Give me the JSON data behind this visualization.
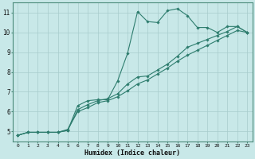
{
  "xlabel": "Humidex (Indice chaleur)",
  "bg_color": "#c8e8e8",
  "line_color": "#2e7d6e",
  "grid_color": "#a8cccc",
  "xlim": [
    -0.5,
    23.5
  ],
  "ylim": [
    4.5,
    11.5
  ],
  "xticks": [
    0,
    1,
    2,
    3,
    4,
    5,
    6,
    7,
    8,
    9,
    10,
    11,
    12,
    13,
    14,
    15,
    16,
    17,
    18,
    19,
    20,
    21,
    22,
    23
  ],
  "yticks": [
    5,
    6,
    7,
    8,
    9,
    10,
    11
  ],
  "line1_x": [
    0,
    1,
    2,
    3,
    4,
    5,
    6,
    7,
    8,
    9,
    10,
    11,
    12,
    13,
    14,
    15,
    16,
    17,
    18,
    19,
    20,
    21,
    22,
    23
  ],
  "line1_y": [
    4.8,
    4.95,
    4.95,
    4.95,
    4.95,
    5.05,
    6.3,
    6.55,
    6.6,
    6.6,
    7.55,
    8.95,
    11.05,
    10.55,
    10.5,
    11.1,
    11.2,
    10.85,
    10.25,
    10.25,
    10.0,
    10.3,
    10.3,
    10.0
  ],
  "line2_x": [
    0,
    1,
    2,
    3,
    4,
    5,
    6,
    7,
    8,
    9,
    10,
    11,
    12,
    13,
    14,
    15,
    16,
    17,
    18,
    19,
    20,
    21,
    22,
    23
  ],
  "line2_y": [
    4.8,
    4.95,
    4.95,
    4.95,
    4.95,
    5.05,
    6.1,
    6.35,
    6.55,
    6.65,
    6.9,
    7.4,
    7.75,
    7.8,
    8.1,
    8.4,
    8.8,
    9.25,
    9.45,
    9.65,
    9.85,
    10.05,
    10.3,
    10.0
  ],
  "line3_x": [
    0,
    1,
    2,
    3,
    4,
    5,
    6,
    7,
    8,
    9,
    10,
    11,
    12,
    13,
    14,
    15,
    16,
    17,
    18,
    19,
    20,
    21,
    22,
    23
  ],
  "line3_y": [
    4.8,
    4.95,
    4.95,
    4.95,
    4.95,
    5.1,
    6.0,
    6.2,
    6.45,
    6.55,
    6.75,
    7.05,
    7.4,
    7.6,
    7.9,
    8.2,
    8.55,
    8.85,
    9.1,
    9.35,
    9.6,
    9.85,
    10.1,
    10.0
  ]
}
